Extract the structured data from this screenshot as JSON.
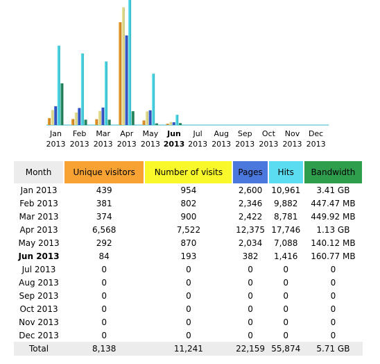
{
  "colors": {
    "unique": "#f9a234",
    "visits": "#f8f82a",
    "pages": "#4a78dd",
    "hits": "#5cdcf0",
    "bandwidth": "#2f9e4c",
    "header_bg": "#ececec"
  },
  "chart_data": {
    "type": "bar",
    "categories": [
      "Jan",
      "Feb",
      "Mar",
      "Apr",
      "May",
      "Jun",
      "Jul",
      "Aug",
      "Sep",
      "Oct",
      "Nov",
      "Dec"
    ],
    "year": "2013",
    "bold_category": "Jun",
    "series": [
      {
        "name": "Unique visitors",
        "values": [
          439,
          381,
          374,
          6568,
          292,
          84,
          0,
          0,
          0,
          0,
          0,
          0
        ]
      },
      {
        "name": "Number of visits",
        "values": [
          954,
          802,
          900,
          7522,
          870,
          193,
          0,
          0,
          0,
          0,
          0,
          0
        ]
      },
      {
        "name": "Pages",
        "values": [
          2600,
          2346,
          2422,
          12375,
          2034,
          382,
          0,
          0,
          0,
          0,
          0,
          0
        ]
      },
      {
        "name": "Hits",
        "values": [
          10961,
          9882,
          8781,
          17746,
          7088,
          1416,
          0,
          0,
          0,
          0,
          0,
          0
        ]
      },
      {
        "name": "Bandwidth",
        "values": [
          3.41,
          447.47,
          449.92,
          1.13,
          140.12,
          160.77,
          0,
          0,
          0,
          0,
          0,
          0
        ]
      }
    ]
  },
  "table": {
    "headers": {
      "month": "Month",
      "unique": "Unique visitors",
      "visits": "Number of visits",
      "pages": "Pages",
      "hits": "Hits",
      "bandwidth": "Bandwidth"
    },
    "rows": [
      {
        "month": "Jan 2013",
        "unique": "439",
        "visits": "954",
        "pages": "2,600",
        "hits": "10,961",
        "bandwidth": "3.41 GB"
      },
      {
        "month": "Feb 2013",
        "unique": "381",
        "visits": "802",
        "pages": "2,346",
        "hits": "9,882",
        "bandwidth": "447.47 MB"
      },
      {
        "month": "Mar 2013",
        "unique": "374",
        "visits": "900",
        "pages": "2,422",
        "hits": "8,781",
        "bandwidth": "449.92 MB"
      },
      {
        "month": "Apr 2013",
        "unique": "6,568",
        "visits": "7,522",
        "pages": "12,375",
        "hits": "17,746",
        "bandwidth": "1.13 GB"
      },
      {
        "month": "May 2013",
        "unique": "292",
        "visits": "870",
        "pages": "2,034",
        "hits": "7,088",
        "bandwidth": "140.12 MB"
      },
      {
        "month": "Jun 2013",
        "unique": "84",
        "visits": "193",
        "pages": "382",
        "hits": "1,416",
        "bandwidth": "160.77 MB"
      },
      {
        "month": "Jul 2013",
        "unique": "0",
        "visits": "0",
        "pages": "0",
        "hits": "0",
        "bandwidth": "0"
      },
      {
        "month": "Aug 2013",
        "unique": "0",
        "visits": "0",
        "pages": "0",
        "hits": "0",
        "bandwidth": "0"
      },
      {
        "month": "Sep 2013",
        "unique": "0",
        "visits": "0",
        "pages": "0",
        "hits": "0",
        "bandwidth": "0"
      },
      {
        "month": "Oct 2013",
        "unique": "0",
        "visits": "0",
        "pages": "0",
        "hits": "0",
        "bandwidth": "0"
      },
      {
        "month": "Nov 2013",
        "unique": "0",
        "visits": "0",
        "pages": "0",
        "hits": "0",
        "bandwidth": "0"
      },
      {
        "month": "Dec 2013",
        "unique": "0",
        "visits": "0",
        "pages": "0",
        "hits": "0",
        "bandwidth": "0"
      }
    ],
    "total": {
      "month": "Total",
      "unique": "8,138",
      "visits": "11,241",
      "pages": "22,159",
      "hits": "55,874",
      "bandwidth": "5.71 GB"
    }
  }
}
